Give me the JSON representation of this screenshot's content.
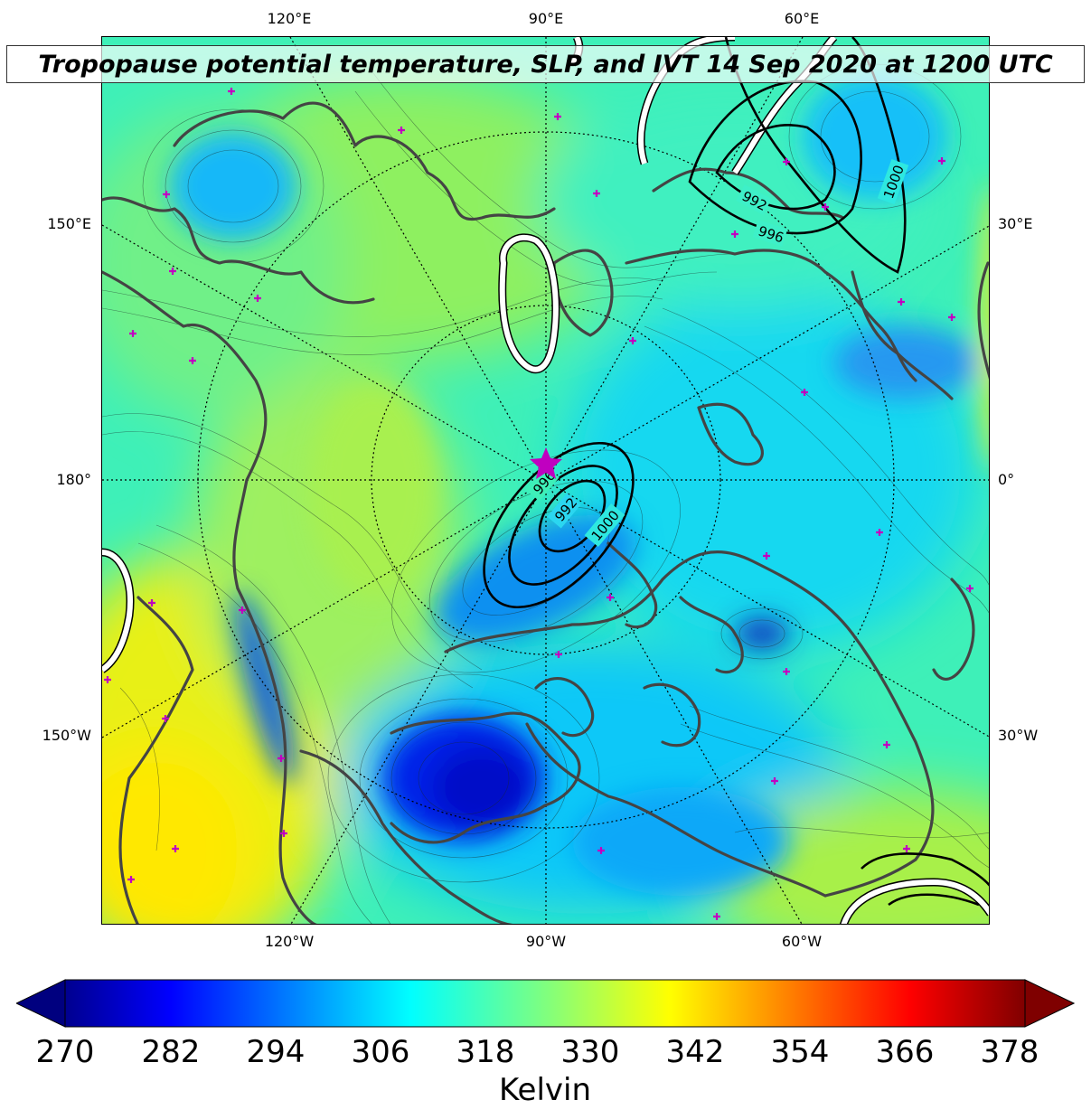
{
  "title": "Tropopause potential temperature, SLP, and IVT 14 Sep 2020 at 1200 UTC",
  "longitude_labels": {
    "top": [
      "120°E",
      "90°E",
      "60°E"
    ],
    "bottom": [
      "120°W",
      "90°W",
      "60°W"
    ],
    "left": [
      "150°E",
      "180°",
      "150°W"
    ],
    "right": [
      "30°E",
      "0°",
      "30°W"
    ]
  },
  "slp_contour_labels": [
    "996",
    "992",
    "1000",
    "992",
    "996",
    "1000"
  ],
  "storm_marker": "star-icon",
  "station_marker": "plus-icon",
  "colorbar": {
    "ticks": [
      "270",
      "282",
      "294",
      "306",
      "318",
      "330",
      "342",
      "354",
      "366",
      "378"
    ],
    "unit": "Kelvin",
    "colormap": "jet",
    "range": [
      270,
      378
    ]
  },
  "colors": {
    "coastline": "#444444",
    "slp_contours": "#000000",
    "ivt_contours": "#ffffff",
    "markers": "#c000c0"
  }
}
